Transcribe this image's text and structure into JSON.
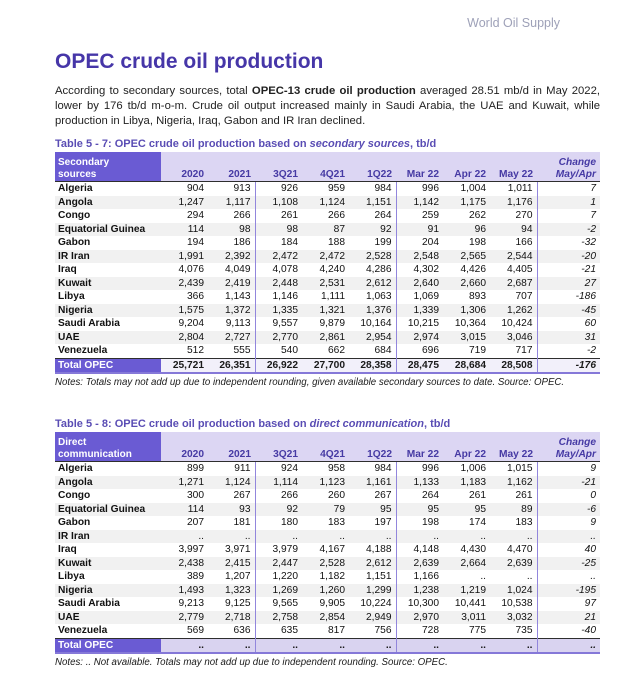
{
  "page": {
    "watermark": "World Oil Supply",
    "title": "OPEC crude oil production"
  },
  "intro": {
    "before": "According to secondary sources, total ",
    "bold": "OPEC-13 crude oil production",
    "after": " averaged 28.51 mb/d in May 2022, lower by 176 tb/d m-o-m. Crude oil output increased mainly in Saudi Arabia, the UAE and Kuwait, while production in Libya, Nigeria, Iraq, Gabon and IR Iran declined."
  },
  "colors": {
    "accent_purple": "#4636a8",
    "caption_purple": "#5a4db4",
    "header_dark_bg": "#6a5bd3",
    "header_light_bg": "#dcd6f3",
    "row_stripe": "#f1f1f1",
    "separator_line": "#9286dc",
    "watermark_gray": "#9ea1b8"
  },
  "tables": [
    {
      "caption": {
        "prefix": "Table 5 - 7: OPEC crude oil production based on ",
        "italic": "secondary sources",
        "suffix": ", tb/d"
      },
      "row_header": "Secondary\nsources",
      "columns": [
        "2020",
        "2021",
        "3Q21",
        "4Q21",
        "1Q22",
        "Mar 22",
        "Apr 22",
        "May 22"
      ],
      "change_header": "Change\nMay/Apr",
      "rows": [
        [
          "Algeria",
          "904",
          "913",
          "926",
          "959",
          "984",
          "996",
          "1,004",
          "1,011",
          "7"
        ],
        [
          "Angola",
          "1,247",
          "1,117",
          "1,108",
          "1,124",
          "1,151",
          "1,142",
          "1,175",
          "1,176",
          "1"
        ],
        [
          "Congo",
          "294",
          "266",
          "261",
          "266",
          "264",
          "259",
          "262",
          "270",
          "7"
        ],
        [
          "Equatorial Guinea",
          "114",
          "98",
          "98",
          "87",
          "92",
          "91",
          "96",
          "94",
          "-2"
        ],
        [
          "Gabon",
          "194",
          "186",
          "184",
          "188",
          "199",
          "204",
          "198",
          "166",
          "-32"
        ],
        [
          "IR Iran",
          "1,991",
          "2,392",
          "2,472",
          "2,472",
          "2,528",
          "2,548",
          "2,565",
          "2,544",
          "-20"
        ],
        [
          "Iraq",
          "4,076",
          "4,049",
          "4,078",
          "4,240",
          "4,286",
          "4,302",
          "4,426",
          "4,405",
          "-21"
        ],
        [
          "Kuwait",
          "2,439",
          "2,419",
          "2,448",
          "2,531",
          "2,612",
          "2,640",
          "2,660",
          "2,687",
          "27"
        ],
        [
          "Libya",
          "366",
          "1,143",
          "1,146",
          "1,111",
          "1,063",
          "1,069",
          "893",
          "707",
          "-186"
        ],
        [
          "Nigeria",
          "1,575",
          "1,372",
          "1,335",
          "1,321",
          "1,376",
          "1,339",
          "1,306",
          "1,262",
          "-45"
        ],
        [
          "Saudi Arabia",
          "9,204",
          "9,113",
          "9,557",
          "9,879",
          "10,164",
          "10,215",
          "10,364",
          "10,424",
          "60"
        ],
        [
          "UAE",
          "2,804",
          "2,727",
          "2,770",
          "2,861",
          "2,954",
          "2,974",
          "3,015",
          "3,046",
          "31"
        ],
        [
          "Venezuela",
          "512",
          "555",
          "540",
          "662",
          "684",
          "696",
          "719",
          "717",
          "-2"
        ]
      ],
      "total": [
        "Total  OPEC",
        "25,721",
        "26,351",
        "26,922",
        "27,700",
        "28,358",
        "28,475",
        "28,684",
        "28,508",
        "-176"
      ],
      "notes": "Notes: Totals may not add up due to independent rounding, given available secondary sources to date. Source: OPEC."
    },
    {
      "caption": {
        "prefix": "Table 5 - 8: OPEC crude oil production based on ",
        "italic": "direct communication",
        "suffix": ", tb/d"
      },
      "row_header": "Direct communication",
      "columns": [
        "2020",
        "2021",
        "3Q21",
        "4Q21",
        "1Q22",
        "Mar 22",
        "Apr 22",
        "May 22"
      ],
      "change_header": "Change\nMay/Apr",
      "rows": [
        [
          "Algeria",
          "899",
          "911",
          "924",
          "958",
          "984",
          "996",
          "1,006",
          "1,015",
          "9"
        ],
        [
          "Angola",
          "1,271",
          "1,124",
          "1,114",
          "1,123",
          "1,161",
          "1,133",
          "1,183",
          "1,162",
          "-21"
        ],
        [
          "Congo",
          "300",
          "267",
          "266",
          "260",
          "267",
          "264",
          "261",
          "261",
          "0"
        ],
        [
          "Equatorial Guinea",
          "114",
          "93",
          "92",
          "79",
          "95",
          "95",
          "95",
          "89",
          "-6"
        ],
        [
          "Gabon",
          "207",
          "181",
          "180",
          "183",
          "197",
          "198",
          "174",
          "183",
          "9"
        ],
        [
          "IR Iran",
          "..",
          "..",
          "..",
          "..",
          "..",
          "..",
          "..",
          "..",
          ".."
        ],
        [
          "Iraq",
          "3,997",
          "3,971",
          "3,979",
          "4,167",
          "4,188",
          "4,148",
          "4,430",
          "4,470",
          "40"
        ],
        [
          "Kuwait",
          "2,438",
          "2,415",
          "2,447",
          "2,528",
          "2,612",
          "2,639",
          "2,664",
          "2,639",
          "-25"
        ],
        [
          "Libya",
          "389",
          "1,207",
          "1,220",
          "1,182",
          "1,151",
          "1,166",
          "..",
          "..",
          ".."
        ],
        [
          "Nigeria",
          "1,493",
          "1,323",
          "1,269",
          "1,260",
          "1,299",
          "1,238",
          "1,219",
          "1,024",
          "-195"
        ],
        [
          "Saudi Arabia",
          "9,213",
          "9,125",
          "9,565",
          "9,905",
          "10,224",
          "10,300",
          "10,441",
          "10,538",
          "97"
        ],
        [
          "UAE",
          "2,779",
          "2,718",
          "2,758",
          "2,854",
          "2,949",
          "2,970",
          "3,011",
          "3,032",
          "21"
        ],
        [
          "Venezuela",
          "569",
          "636",
          "635",
          "817",
          "756",
          "728",
          "775",
          "735",
          "-40"
        ]
      ],
      "total": [
        "Total  OPEC",
        "..",
        "..",
        "..",
        "..",
        "..",
        "..",
        "..",
        "..",
        ".."
      ],
      "notes": "Notes: .. Not available. Totals may not add up due to independent rounding. Source: OPEC."
    }
  ]
}
